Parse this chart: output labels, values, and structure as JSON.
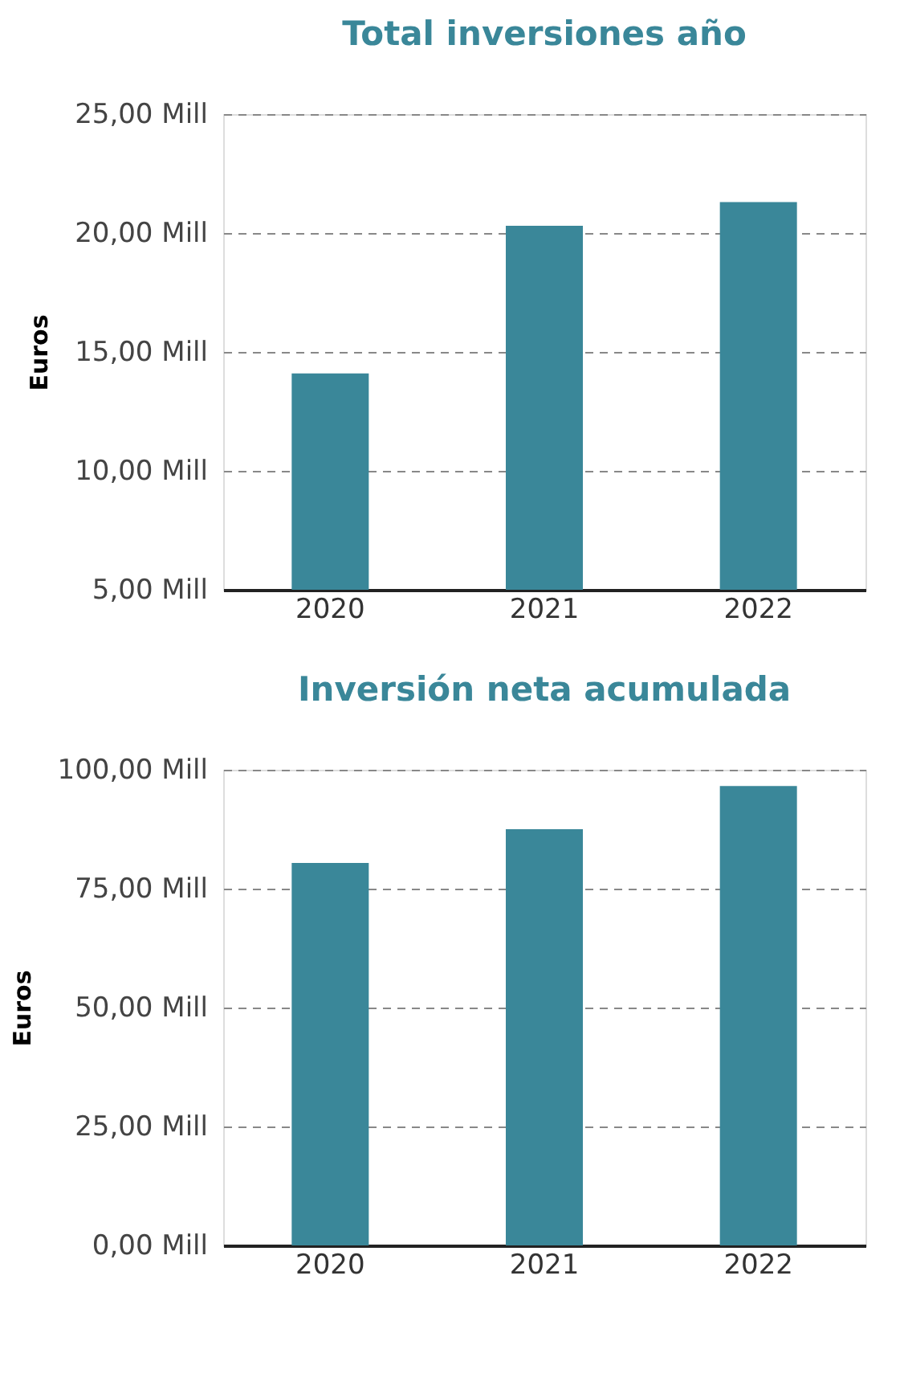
{
  "chart_data": [
    {
      "type": "bar",
      "title": "Total inversiones año",
      "ylabel": "Euros",
      "categories": [
        "2020",
        "2021",
        "2022"
      ],
      "values": [
        14.1,
        20.3,
        21.3
      ],
      "color": "#3a8799",
      "ylim": [
        5,
        25
      ],
      "yticks": [
        {
          "value": 5,
          "label": "5,00 Mill"
        },
        {
          "value": 10,
          "label": "10,00 Mill"
        },
        {
          "value": 15,
          "label": "15,00 Mill"
        },
        {
          "value": 20,
          "label": "20,00 Mill"
        },
        {
          "value": 25,
          "label": "25,00 Mill"
        }
      ],
      "grid": "y"
    },
    {
      "type": "bar",
      "title": "Inversión neta acumulada",
      "ylabel": "Euros",
      "categories": [
        "2020",
        "2021",
        "2022"
      ],
      "values": [
        80.4,
        87.5,
        96.6
      ],
      "color": "#3a8799",
      "ylim": [
        0,
        100
      ],
      "yticks": [
        {
          "value": 0,
          "label": "0,00 Mill"
        },
        {
          "value": 25,
          "label": "25,00 Mill"
        },
        {
          "value": 50,
          "label": "50,00 Mill"
        },
        {
          "value": 75,
          "label": "75,00 Mill"
        },
        {
          "value": 100,
          "label": "100,00 Mill"
        }
      ],
      "grid": "y"
    }
  ]
}
